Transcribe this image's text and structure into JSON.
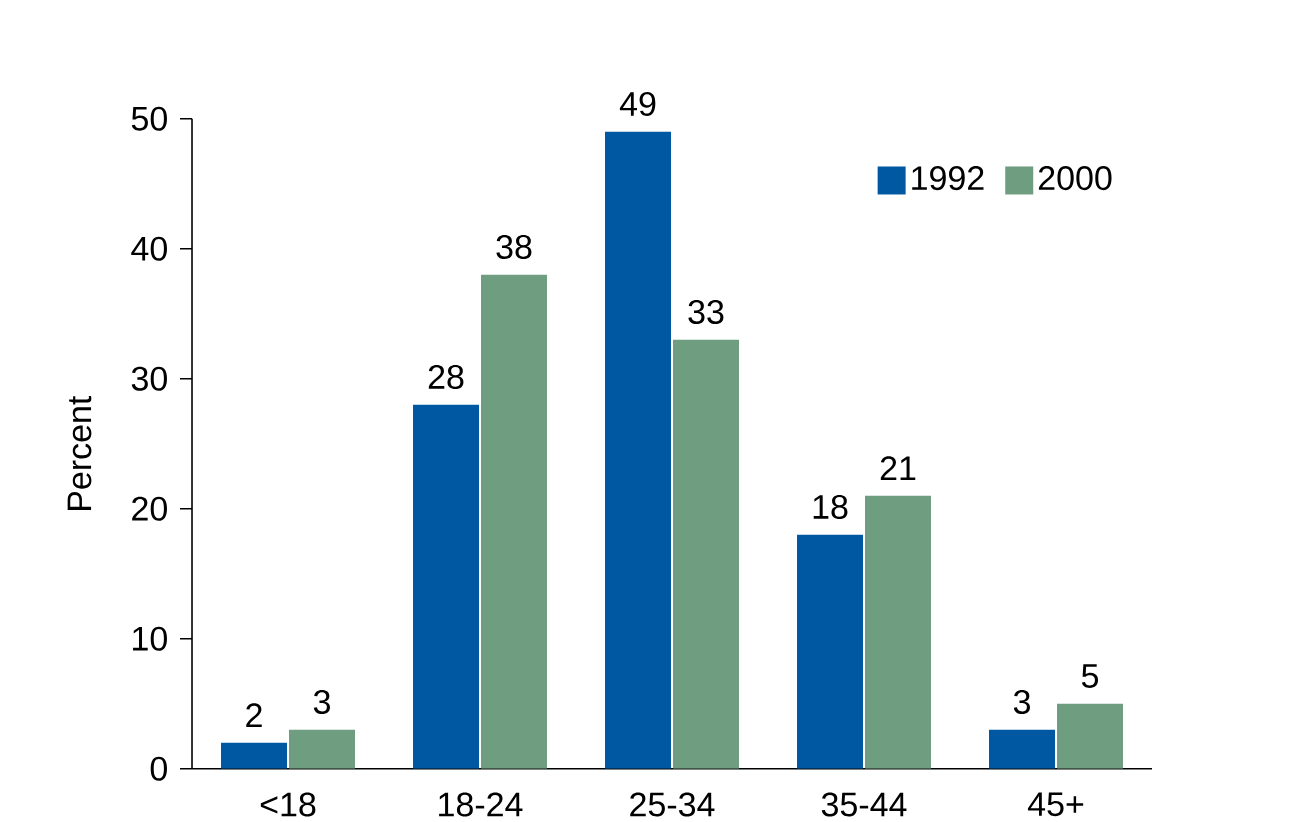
{
  "chart_data": {
    "type": "bar",
    "ylabel": "Percent",
    "categories": [
      "<18",
      "18-24",
      "25-34",
      "35-44",
      "45+"
    ],
    "series": [
      {
        "name": "1992",
        "color": "#0058a3",
        "values": [
          2,
          28,
          49,
          18,
          3
        ]
      },
      {
        "name": "2000",
        "color": "#6e9d7f",
        "values": [
          3,
          38,
          33,
          21,
          5
        ]
      }
    ],
    "ylim": [
      0,
      50
    ],
    "yticks": [
      0,
      10,
      20,
      30,
      40,
      50
    ],
    "data_labels": true,
    "legend": "top right",
    "grid": false
  }
}
